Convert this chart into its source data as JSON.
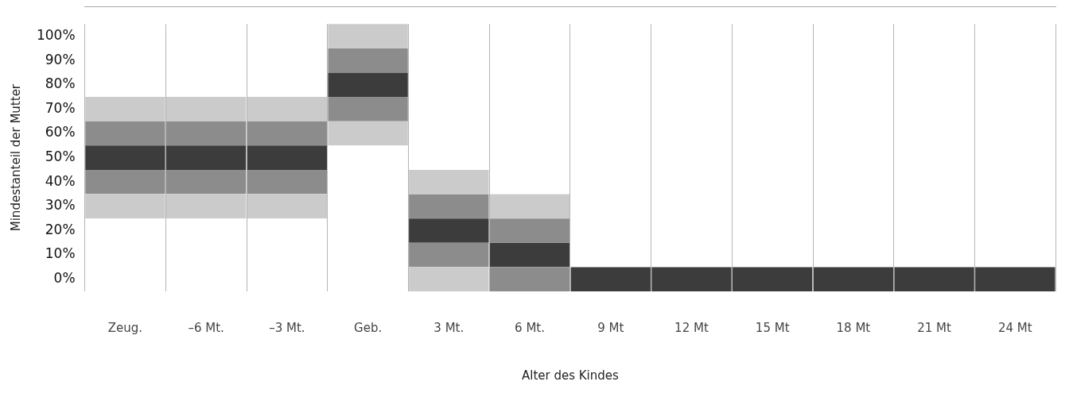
{
  "chart_data": {
    "type": "bar",
    "xlabel": "Alter des Kindes",
    "ylabel": "Mindestanteil der Mutter",
    "categories": [
      "Zeug.",
      "–6 Mt.",
      "–3 Mt.",
      "Geb.",
      "3 Mt.",
      "6 Mt.",
      "9 Mt",
      "12 Mt",
      "15 Mt",
      "18 Mt",
      "21 Mt",
      "24 Mt"
    ],
    "series": [
      {
        "color": "#cbcbcb",
        "base": [
          25,
          25,
          25,
          55,
          -5,
          null,
          null,
          null,
          null,
          null,
          null,
          null
        ],
        "values": [
          10,
          10,
          10,
          10,
          10,
          null,
          null,
          null,
          null,
          null,
          null,
          null
        ]
      },
      {
        "color": "#8c8c8c",
        "base": [
          35,
          35,
          35,
          65,
          5,
          -5,
          null,
          null,
          null,
          null,
          null,
          null
        ],
        "values": [
          10,
          10,
          10,
          10,
          10,
          10,
          null,
          null,
          null,
          null,
          null,
          null
        ]
      },
      {
        "color": "#3c3c3c",
        "base": [
          45,
          45,
          45,
          75,
          15,
          5,
          -5,
          -5,
          -5,
          -5,
          -5,
          -5
        ],
        "values": [
          10,
          10,
          10,
          10,
          10,
          10,
          10,
          10,
          10,
          10,
          10,
          10
        ]
      },
      {
        "color": "#8c8c8c",
        "base": [
          55,
          55,
          55,
          85,
          25,
          15,
          null,
          null,
          null,
          null,
          null,
          null
        ],
        "values": [
          10,
          10,
          10,
          10,
          10,
          10,
          null,
          null,
          null,
          null,
          null,
          null
        ]
      },
      {
        "color": "#cbcbcb",
        "base": [
          65,
          65,
          65,
          95,
          35,
          25,
          null,
          null,
          null,
          null,
          null,
          null
        ],
        "values": [
          10,
          10,
          10,
          10,
          10,
          10,
          null,
          null,
          null,
          null,
          null,
          null
        ]
      }
    ],
    "ylim": [
      -5,
      105
    ],
    "yticks": [
      {
        "value": 0,
        "label": "0%"
      },
      {
        "value": 10,
        "label": "10%"
      },
      {
        "value": 20,
        "label": "20%"
      },
      {
        "value": 30,
        "label": "30%"
      },
      {
        "value": 40,
        "label": "40%"
      },
      {
        "value": 50,
        "label": "50%"
      },
      {
        "value": 60,
        "label": "60%"
      },
      {
        "value": 70,
        "label": "70%"
      },
      {
        "value": 80,
        "label": "80%"
      },
      {
        "value": 90,
        "label": "90%"
      },
      {
        "value": 100,
        "label": "100%"
      }
    ],
    "grid": "x",
    "legend": false
  }
}
